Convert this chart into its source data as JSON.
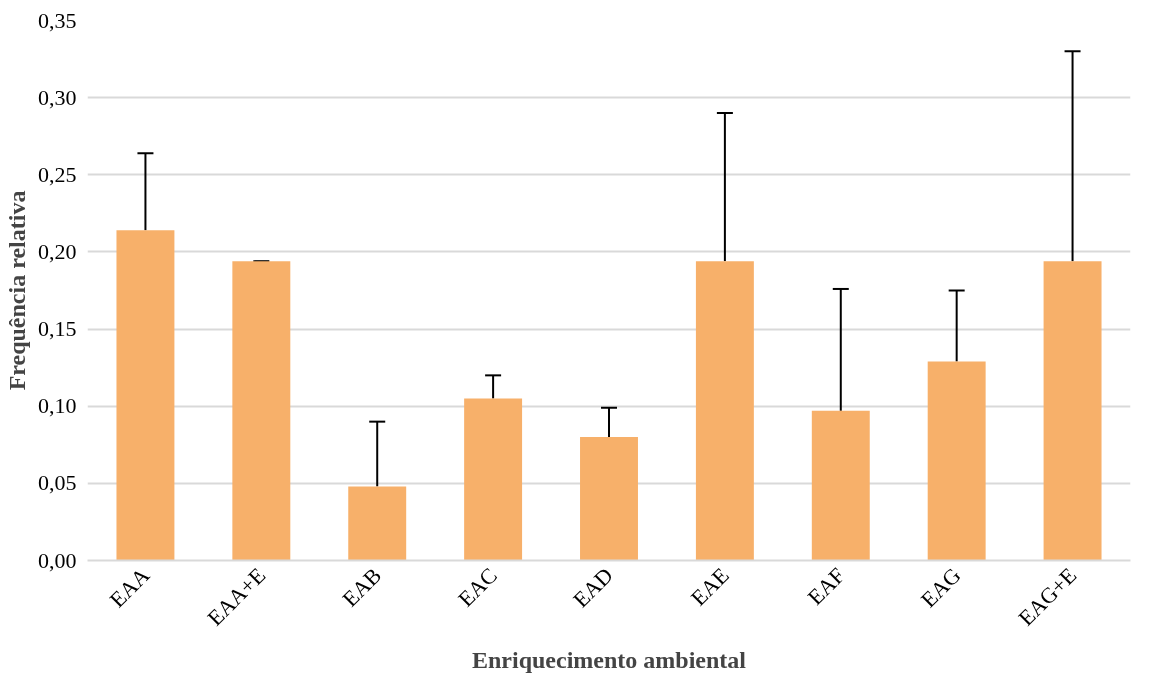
{
  "chart_data": {
    "type": "bar",
    "xlabel": "Enriquecimento ambiental",
    "ylabel": "Frequência relativa",
    "categories": [
      "EAA",
      "EAA+E",
      "EAB",
      "EAC",
      "EAD",
      "EAE",
      "EAF",
      "EAG",
      "EAG+E"
    ],
    "values": [
      0.214,
      0.194,
      0.048,
      0.105,
      0.08,
      0.194,
      0.097,
      0.129,
      0.194
    ],
    "color": "#f7b06a",
    "errors": [
      [
        0.214,
        0.264
      ],
      [
        0.194,
        0.194
      ],
      [
        0.048,
        0.09
      ],
      [
        0.105,
        0.12
      ],
      [
        0.08,
        0.099
      ],
      [
        0.194,
        0.29
      ],
      [
        0.097,
        0.176
      ],
      [
        0.129,
        0.175
      ],
      [
        0.194,
        0.33
      ]
    ],
    "ylim": [
      0,
      0.35
    ],
    "yticks": [
      {
        "value": 0,
        "label": "0,00"
      },
      {
        "value": 0.05,
        "label": "0,05"
      },
      {
        "value": 0.1,
        "label": "0,10"
      },
      {
        "value": 0.15,
        "label": "0,15"
      },
      {
        "value": 0.2,
        "label": "0,20"
      },
      {
        "value": 0.25,
        "label": "0,25"
      },
      {
        "value": 0.3,
        "label": "0,30"
      },
      {
        "value": 0.35,
        "label": "0,35"
      }
    ],
    "grid": "y"
  }
}
